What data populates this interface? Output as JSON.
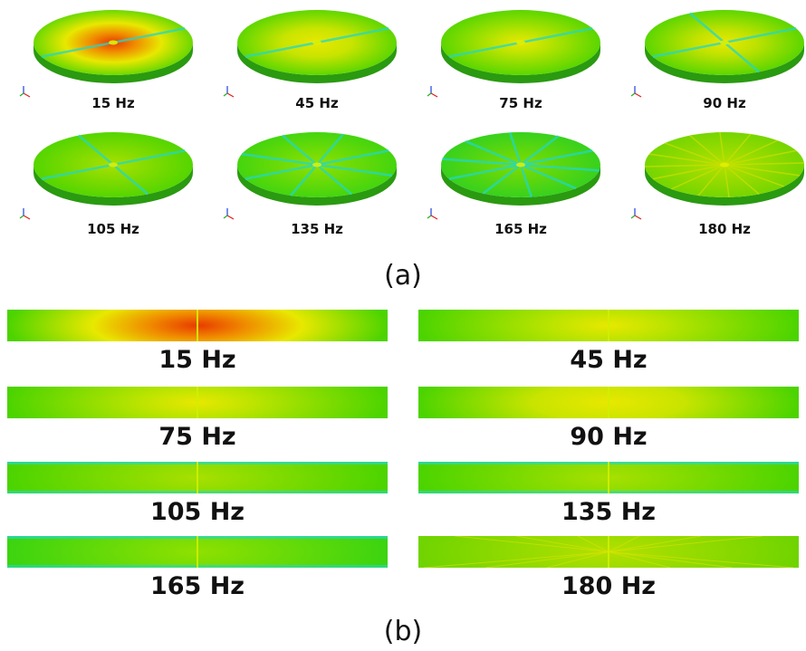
{
  "part_a": {
    "caption": "(a)",
    "panels": [
      {
        "label": "15 Hz",
        "variant": "hot"
      },
      {
        "label": "45 Hz",
        "variant": "warm"
      },
      {
        "label": "75 Hz",
        "variant": "mild"
      },
      {
        "label": "90 Hz",
        "variant": "lobes"
      },
      {
        "label": "105 Hz",
        "variant": "cool"
      },
      {
        "label": "135 Hz",
        "variant": "cyan"
      },
      {
        "label": "165 Hz",
        "variant": "cyan2"
      },
      {
        "label": "180 Hz",
        "variant": "rays"
      }
    ]
  },
  "part_b": {
    "caption": "(b)",
    "panels": [
      {
        "label": "15 Hz",
        "variant": "hot"
      },
      {
        "label": "45 Hz",
        "variant": "mild"
      },
      {
        "label": "75 Hz",
        "variant": "mild"
      },
      {
        "label": "90 Hz",
        "variant": "warm"
      },
      {
        "label": "105 Hz",
        "variant": "cool"
      },
      {
        "label": "135 Hz",
        "variant": "cool"
      },
      {
        "label": "165 Hz",
        "variant": "cyan"
      },
      {
        "label": "180 Hz",
        "variant": "rays"
      }
    ]
  },
  "colors": {
    "green": "#4cd400",
    "yellow": "#e8e800",
    "orange": "#f08a00",
    "red": "#e83a00",
    "cyan": "#22d8c8",
    "blue": "#2a7ad8",
    "side": "#2a9a10"
  }
}
